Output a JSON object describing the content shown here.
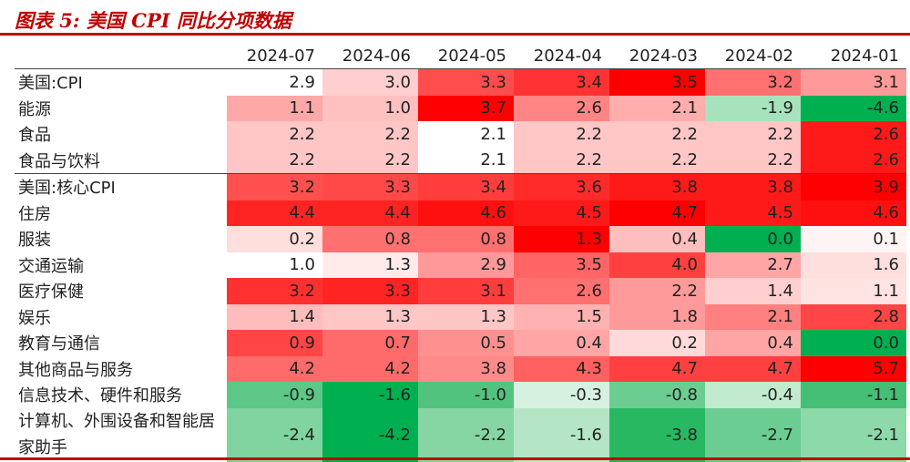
{
  "title": "图表 5:   美国 CPI 同比分项数据",
  "columns": [
    "2024-07",
    "2024-06",
    "2024-05",
    "2024-04",
    "2024-03",
    "2024-02",
    "2024-01"
  ],
  "rows": [
    {
      "label": "美国:CPI",
      "values": [
        "2.9",
        "3.0",
        "3.3",
        "3.4",
        "3.5",
        "3.2",
        "3.1"
      ],
      "colors": [
        "#ffffff",
        "#ffcfcf",
        "#ff4d4d",
        "#ff3333",
        "#ff0000",
        "#ff7070",
        "#ff9a9a"
      ]
    },
    {
      "label": "能源",
      "values": [
        "1.1",
        "1.0",
        "3.7",
        "2.6",
        "2.1",
        "-1.9",
        "-4.6"
      ],
      "colors": [
        "#ffa8a8",
        "#ffc0c0",
        "#ff0000",
        "#ff8585",
        "#ffadad",
        "#a6e3bd",
        "#00b050"
      ]
    },
    {
      "label": "食品",
      "values": [
        "2.2",
        "2.2",
        "2.1",
        "2.2",
        "2.2",
        "2.2",
        "2.6"
      ],
      "colors": [
        "#ffc6c6",
        "#ffc6c6",
        "#ffffff",
        "#ffc6c6",
        "#ffc6c6",
        "#ffc6c6",
        "#ff1a1a"
      ]
    },
    {
      "label": "食品与饮料",
      "values": [
        "2.2",
        "2.2",
        "2.1",
        "2.2",
        "2.2",
        "2.2",
        "2.6"
      ],
      "colors": [
        "#ffc6c6",
        "#ffc6c6",
        "#ffffff",
        "#ffc6c6",
        "#ffc6c6",
        "#ffc6c6",
        "#ff1a1a"
      ]
    },
    {
      "label": "美国:核心CPI",
      "values": [
        "3.2",
        "3.3",
        "3.4",
        "3.6",
        "3.8",
        "3.8",
        "3.9"
      ],
      "colors": [
        "#ff5050",
        "#ff4848",
        "#ff3d3d",
        "#ff2a2a",
        "#ff1a1a",
        "#ff1a1a",
        "#ff0000"
      ]
    },
    {
      "label": "住房",
      "values": [
        "4.4",
        "4.4",
        "4.6",
        "4.5",
        "4.7",
        "4.5",
        "4.6"
      ],
      "colors": [
        "#ff2424",
        "#ff2424",
        "#ff1010",
        "#ff1a1a",
        "#ff0000",
        "#ff1a1a",
        "#ff1010"
      ]
    },
    {
      "label": "服装",
      "values": [
        "0.2",
        "0.8",
        "0.8",
        "1.3",
        "0.4",
        "0.0",
        "0.1"
      ],
      "colors": [
        "#ffdede",
        "#ff7070",
        "#ff7070",
        "#ff0000",
        "#ffbebe",
        "#00b050",
        "#fff4f4"
      ]
    },
    {
      "label": "交通运输",
      "values": [
        "1.0",
        "1.3",
        "2.9",
        "3.5",
        "4.0",
        "2.7",
        "1.6"
      ],
      "colors": [
        "#ffffff",
        "#ffeaea",
        "#ff9999",
        "#ff6565",
        "#ff4040",
        "#ffa5a5",
        "#ffdede"
      ]
    },
    {
      "label": "医疗保健",
      "values": [
        "3.2",
        "3.3",
        "3.1",
        "2.6",
        "2.2",
        "1.4",
        "1.1"
      ],
      "colors": [
        "#ff3030",
        "#ff2424",
        "#ff3d3d",
        "#ff7070",
        "#ff9a9a",
        "#ffcece",
        "#ffe2e2"
      ]
    },
    {
      "label": "娱乐",
      "values": [
        "1.4",
        "1.3",
        "1.3",
        "1.5",
        "1.8",
        "2.1",
        "2.8"
      ],
      "colors": [
        "#ffbcbc",
        "#ffc6c6",
        "#ffc6c6",
        "#ffb2b2",
        "#ff9a9a",
        "#ff8080",
        "#ff4545"
      ]
    },
    {
      "label": "教育与通信",
      "values": [
        "0.9",
        "0.7",
        "0.5",
        "0.4",
        "0.2",
        "0.4",
        "0.0"
      ],
      "colors": [
        "#ff4545",
        "#ff6a6a",
        "#ff9090",
        "#ffa5a5",
        "#ffdada",
        "#ffa5a5",
        "#00b050"
      ]
    },
    {
      "label": "其他商品与服务",
      "values": [
        "4.2",
        "4.2",
        "3.8",
        "4.3",
        "4.7",
        "4.7",
        "5.7"
      ],
      "colors": [
        "#ff6a6a",
        "#ff6a6a",
        "#ff8a8a",
        "#ff6060",
        "#ff4040",
        "#ff4040",
        "#ff0000"
      ]
    },
    {
      "label": "信息技术、硬件和服务",
      "values": [
        "-0.9",
        "-1.6",
        "-1.0",
        "-0.3",
        "-0.8",
        "-0.4",
        "-1.1"
      ],
      "colors": [
        "#5cc786",
        "#00b050",
        "#52c37f",
        "#d6f1e0",
        "#6ccd92",
        "#c2eacf",
        "#45bf76"
      ]
    },
    {
      "label": "计算机、外围设备和智能居家助手",
      "values": [
        "-2.4",
        "-4.2",
        "-2.2",
        "-1.6",
        "-3.8",
        "-2.7",
        "-2.1"
      ],
      "colors": [
        "#7fd49f",
        "#00b050",
        "#86d6a4",
        "#b4e6c5",
        "#28b862",
        "#6ccd92",
        "#8ed9a9"
      ]
    }
  ]
}
